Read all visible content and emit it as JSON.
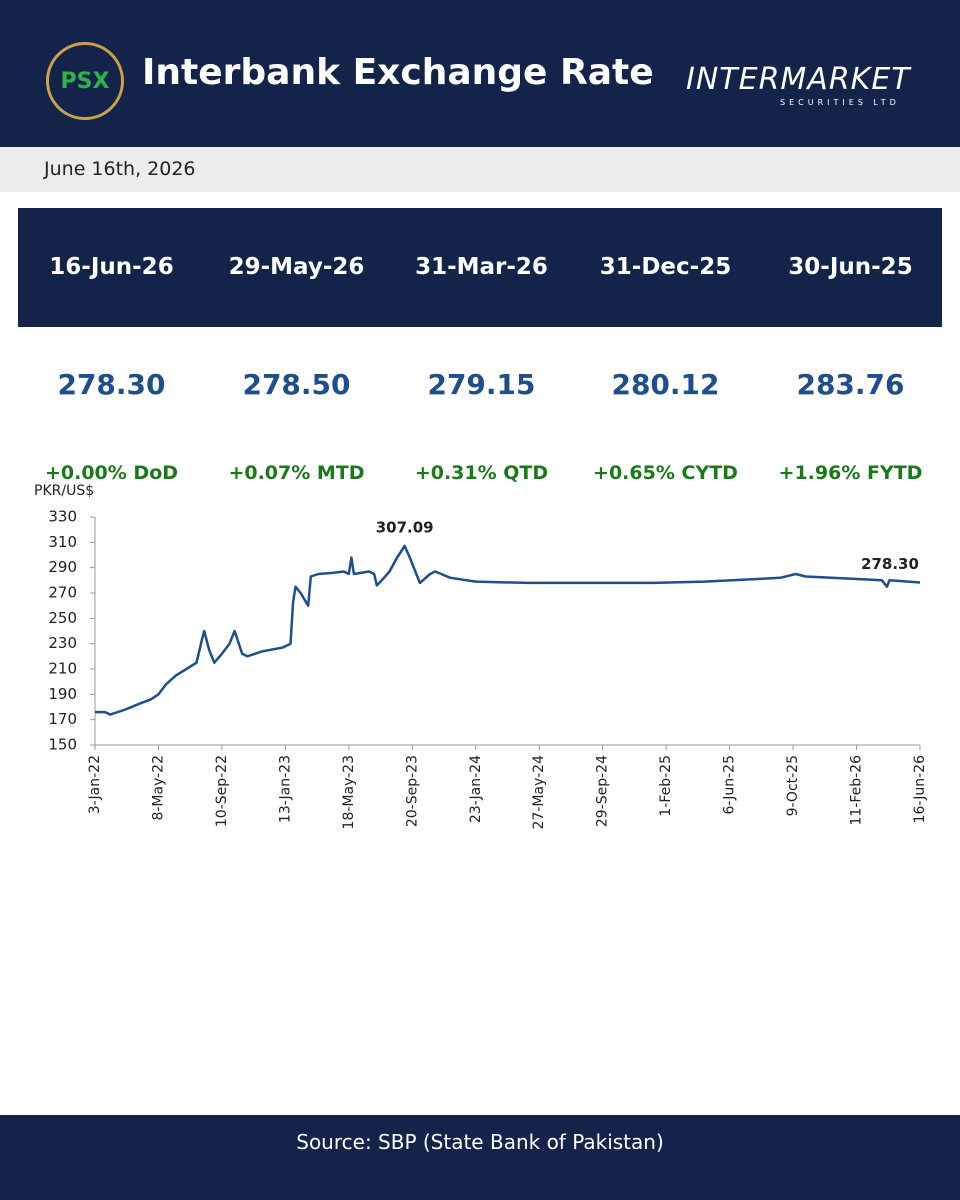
{
  "header": {
    "logo": "PSX",
    "title": "Interbank Exchange Rate",
    "brand": "INTERMARKET",
    "brand_sub": "SECURITIES LTD"
  },
  "date": "June 16th, 2026",
  "summary": {
    "dates": [
      "16-Jun-26",
      "29-May-26",
      "31-Mar-26",
      "31-Dec-25",
      "30-Jun-25"
    ],
    "values": [
      "278.30",
      "278.50",
      "279.15",
      "280.12",
      "283.76"
    ],
    "changes": [
      "+0.00% DoD",
      "+0.07% MTD",
      "+0.31% QTD",
      "+0.65% CYTD",
      "+1.96% FYTD"
    ]
  },
  "chart_data": {
    "type": "line",
    "ylabel": "PKR/US$",
    "x": [
      0,
      20,
      30,
      60,
      90,
      110,
      125,
      140,
      160,
      180,
      200,
      210,
      215,
      225,
      235,
      250,
      265,
      275,
      290,
      300,
      330,
      370,
      385,
      390,
      395,
      405,
      420,
      425,
      440,
      470,
      490,
      500,
      505,
      510,
      540,
      550,
      555,
      565,
      580,
      595,
      610,
      620,
      640,
      660,
      670,
      700,
      750,
      850,
      1000,
      1100,
      1200,
      1300,
      1350,
      1380,
      1400,
      1450,
      1550,
      1560,
      1565,
      1625
    ],
    "series": [
      {
        "color": "#1f4e8c",
        "values": [
          176,
          176,
          174,
          178,
          183,
          186,
          190,
          198,
          205,
          210,
          215,
          232,
          240,
          225,
          215,
          222,
          230,
          240,
          222,
          220,
          224,
          227,
          230,
          262,
          275,
          270,
          260,
          283,
          285,
          286,
          287,
          285,
          298,
          285,
          287,
          285,
          276,
          280,
          287,
          298,
          307.09,
          298,
          278,
          285,
          287,
          282,
          279,
          278,
          278,
          278,
          279,
          281,
          282,
          285,
          283,
          282,
          280,
          275,
          280,
          278.3
        ]
      }
    ],
    "xlim": [
      0,
      1625
    ],
    "xticks": [
      {
        "value": 0,
        "label": "3-Jan-22"
      },
      {
        "value": 125,
        "label": "8-May-22"
      },
      {
        "value": 250,
        "label": "10-Sep-22"
      },
      {
        "value": 375,
        "label": "13-Jan-23"
      },
      {
        "value": 500,
        "label": "18-May-23"
      },
      {
        "value": 625,
        "label": "20-Sep-23"
      },
      {
        "value": 750,
        "label": "23-Jan-24"
      },
      {
        "value": 875,
        "label": "27-May-24"
      },
      {
        "value": 1000,
        "label": "29-Sep-24"
      },
      {
        "value": 1125,
        "label": "1-Feb-25"
      },
      {
        "value": 1250,
        "label": "6-Jun-25"
      },
      {
        "value": 1375,
        "label": "9-Oct-25"
      },
      {
        "value": 1500,
        "label": "11-Feb-26"
      },
      {
        "value": 1625,
        "label": "16-Jun-26"
      }
    ],
    "ylim": [
      150,
      330
    ],
    "yticks": [
      150,
      170,
      190,
      210,
      230,
      250,
      270,
      290,
      310,
      330
    ],
    "annotations": [
      {
        "label": "307.09",
        "x": 610,
        "value": 307.09
      },
      {
        "label": "278.30",
        "x": 1625,
        "value": 278.3
      }
    ]
  },
  "source": "Source: SBP (State Bank of Pakistan)"
}
